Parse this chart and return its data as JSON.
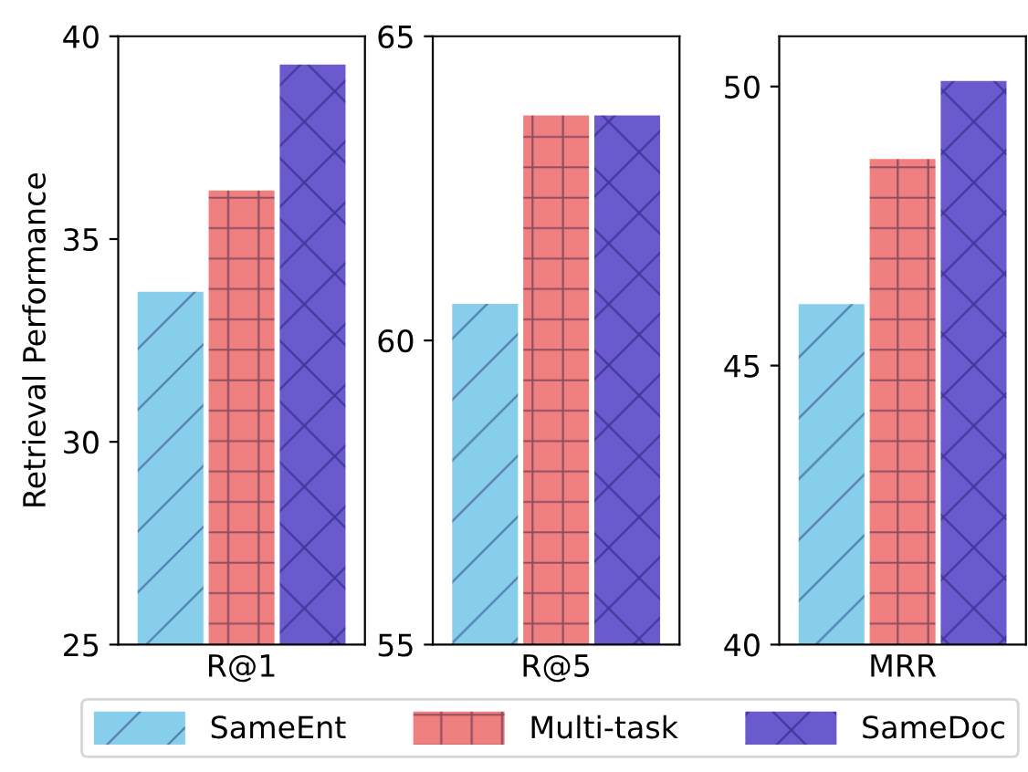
{
  "chart_data": [
    {
      "type": "bar",
      "ylabel": "Retrieval Performance",
      "categories": [
        "R@1"
      ],
      "ylim": [
        25,
        40
      ],
      "yticks": [
        25,
        30,
        35,
        40
      ],
      "legend": "bottom",
      "series": [
        {
          "name": "SameEnt",
          "color": "#87ceeb",
          "values": [
            33.7
          ]
        },
        {
          "name": "Multi-task",
          "color": "#f08080",
          "values": [
            36.2
          ]
        },
        {
          "name": "SameDoc",
          "color": "#6a5acd",
          "values": [
            39.3
          ]
        }
      ]
    },
    {
      "type": "bar",
      "categories": [
        "R@5"
      ],
      "ylim": [
        55,
        65
      ],
      "yticks": [
        55,
        60,
        65
      ],
      "series": [
        {
          "color": "#87ceeb",
          "values": [
            60.6
          ]
        },
        {
          "color": "#f08080",
          "values": [
            63.7
          ]
        },
        {
          "color": "#6a5acd",
          "values": [
            63.7
          ]
        }
      ]
    },
    {
      "type": "bar",
      "categories": [
        "MRR"
      ],
      "ylim": [
        40,
        50.9
      ],
      "yticks": [
        40,
        45,
        50
      ],
      "series": [
        {
          "color": "#87ceeb",
          "values": [
            46.1
          ]
        },
        {
          "color": "#f08080",
          "values": [
            48.7
          ]
        },
        {
          "color": "#6a5acd",
          "values": [
            50.1
          ]
        }
      ]
    }
  ]
}
